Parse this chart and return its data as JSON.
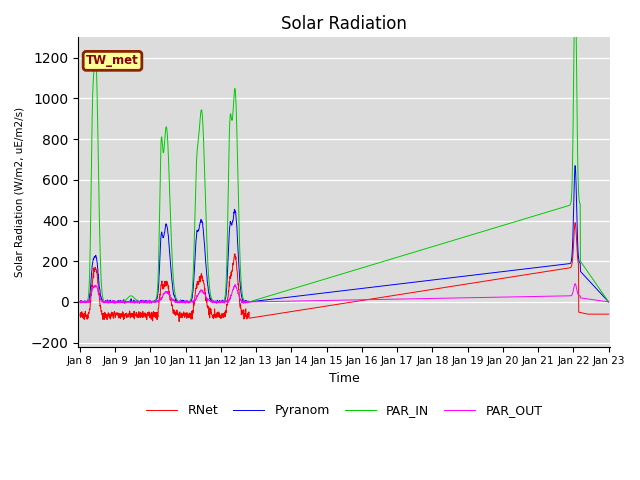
{
  "title": "Solar Radiation",
  "ylabel": "Solar Radiation (W/m2, uE/m2/s)",
  "xlabel": "Time",
  "station_label": "TW_met",
  "ylim": [
    -220,
    1300
  ],
  "yticks": [
    -200,
    0,
    200,
    400,
    600,
    800,
    1000,
    1200
  ],
  "background_color": "#dcdcdc",
  "legend_entries": [
    "RNet",
    "Pyranom",
    "PAR_IN",
    "PAR_OUT"
  ],
  "legend_colors": [
    "#ff0000",
    "#0000ff",
    "#00cc00",
    "#ff00ff"
  ],
  "xlim": [
    -0.05,
    15.05
  ],
  "xtick_labels": [
    "Jan 8",
    "Jan 9",
    "Jan 10",
    "Jan 11",
    "Jan 12",
    "Jan 13",
    "Jan 14",
    "Jan 15",
    "Jan 16",
    "Jan 17",
    "Jan 18",
    "Jan 19",
    "Jan 20",
    "Jan 21",
    "Jan 22",
    "Jan 23"
  ]
}
